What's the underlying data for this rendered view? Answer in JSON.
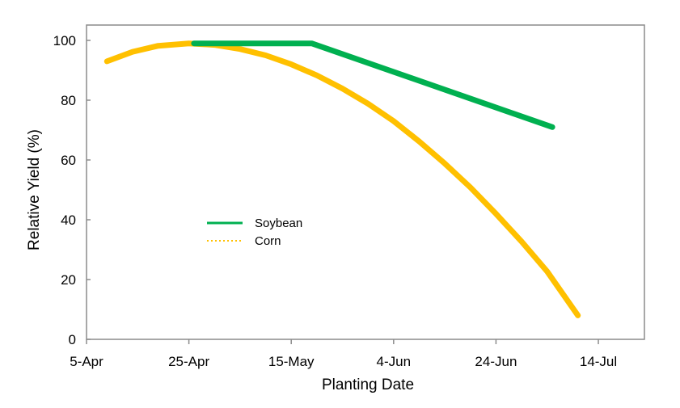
{
  "chart_data": {
    "type": "line",
    "title": "",
    "xlabel": "Planting Date",
    "ylabel": "Relative  Yield (%)",
    "xlim": [
      "5-Apr",
      "23-Jul"
    ],
    "ylim": [
      0,
      100
    ],
    "x_ticks": [
      "5-Apr",
      "25-Apr",
      "15-May",
      "4-Jun",
      "24-Jun",
      "14-Jul"
    ],
    "y_ticks": [
      0,
      20,
      40,
      60,
      80,
      100
    ],
    "grid": false,
    "legend_position": "center-left",
    "series": [
      {
        "name": "Soybean",
        "color": "#00B050",
        "legend_style": "solid",
        "points": [
          [
            "26-Apr",
            99
          ],
          [
            "19-May",
            99
          ],
          [
            "5-Jul",
            71
          ]
        ]
      },
      {
        "name": "Corn",
        "color": "#FFC000",
        "legend_style": "dotted",
        "points": [
          [
            "9-Apr",
            93
          ],
          [
            "14-Apr",
            96.2
          ],
          [
            "19-Apr",
            98.2
          ],
          [
            "25-Apr",
            99
          ],
          [
            "30-Apr",
            98.5
          ],
          [
            "5-May",
            97.1
          ],
          [
            "10-May",
            95
          ],
          [
            "15-May",
            92
          ],
          [
            "20-May",
            88.3
          ],
          [
            "25-May",
            83.9
          ],
          [
            "30-May",
            78.8
          ],
          [
            "4-Jun",
            73
          ],
          [
            "9-Jun",
            66.2
          ],
          [
            "14-Jun",
            58.8
          ],
          [
            "19-Jun",
            50.8
          ],
          [
            "24-Jun",
            42
          ],
          [
            "29-Jun",
            32.7
          ],
          [
            "4-Jul",
            22.7
          ],
          [
            "10-Jul",
            8
          ]
        ]
      }
    ]
  }
}
